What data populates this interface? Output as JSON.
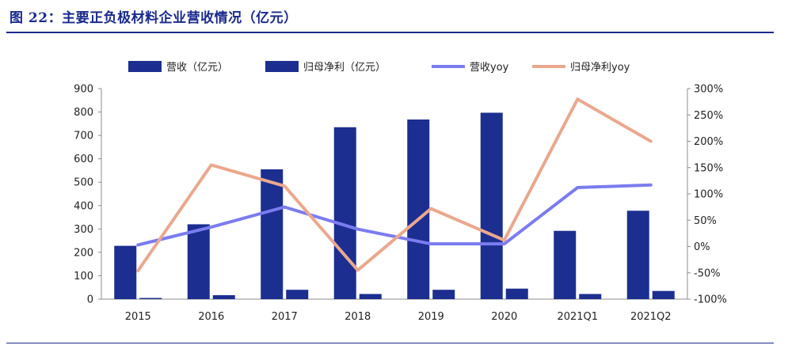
{
  "figure": {
    "title": "图 22：主要正负极材料企业营收情况（亿元）"
  },
  "colors": {
    "title": "#1a2a8c",
    "bar_revenue": "#1c2e8f",
    "bar_profit": "#1c2e8f",
    "line_revenue_yoy": "#7b7cf0",
    "line_profit_yoy": "#eaa88e",
    "rule": "#1a2a8c"
  },
  "chart_data": {
    "type": "bar",
    "categories": [
      "2015",
      "2016",
      "2017",
      "2018",
      "2019",
      "2020",
      "2021Q1",
      "2021Q2"
    ],
    "series": [
      {
        "name": "营收（亿元）",
        "type": "bar",
        "axis": "left",
        "values": [
          228,
          320,
          555,
          735,
          768,
          797,
          292,
          378
        ]
      },
      {
        "name": "归母净利（亿元）",
        "type": "bar",
        "axis": "left",
        "values": [
          5,
          17,
          40,
          22,
          40,
          45,
          22,
          35
        ]
      },
      {
        "name": "营收yoy",
        "type": "line",
        "axis": "right",
        "values": [
          0.03,
          0.37,
          0.75,
          0.33,
          0.05,
          0.05,
          1.12,
          1.17
        ]
      },
      {
        "name": "归母净利yoy",
        "type": "line",
        "axis": "right",
        "values": [
          -0.46,
          1.55,
          1.15,
          -0.45,
          0.72,
          0.12,
          2.8,
          2.0
        ]
      }
    ],
    "left_axis": {
      "ylim": [
        0,
        900
      ],
      "ticks": [
        "0",
        "100",
        "200",
        "300",
        "400",
        "500",
        "600",
        "700",
        "800",
        "900"
      ]
    },
    "right_axis": {
      "ylim": [
        -1.0,
        3.0
      ],
      "ticks": [
        "-100%",
        "-50%",
        "0%",
        "50%",
        "100%",
        "150%",
        "200%",
        "250%",
        "300%"
      ]
    },
    "legend": {
      "position": "top"
    },
    "grid": false
  }
}
